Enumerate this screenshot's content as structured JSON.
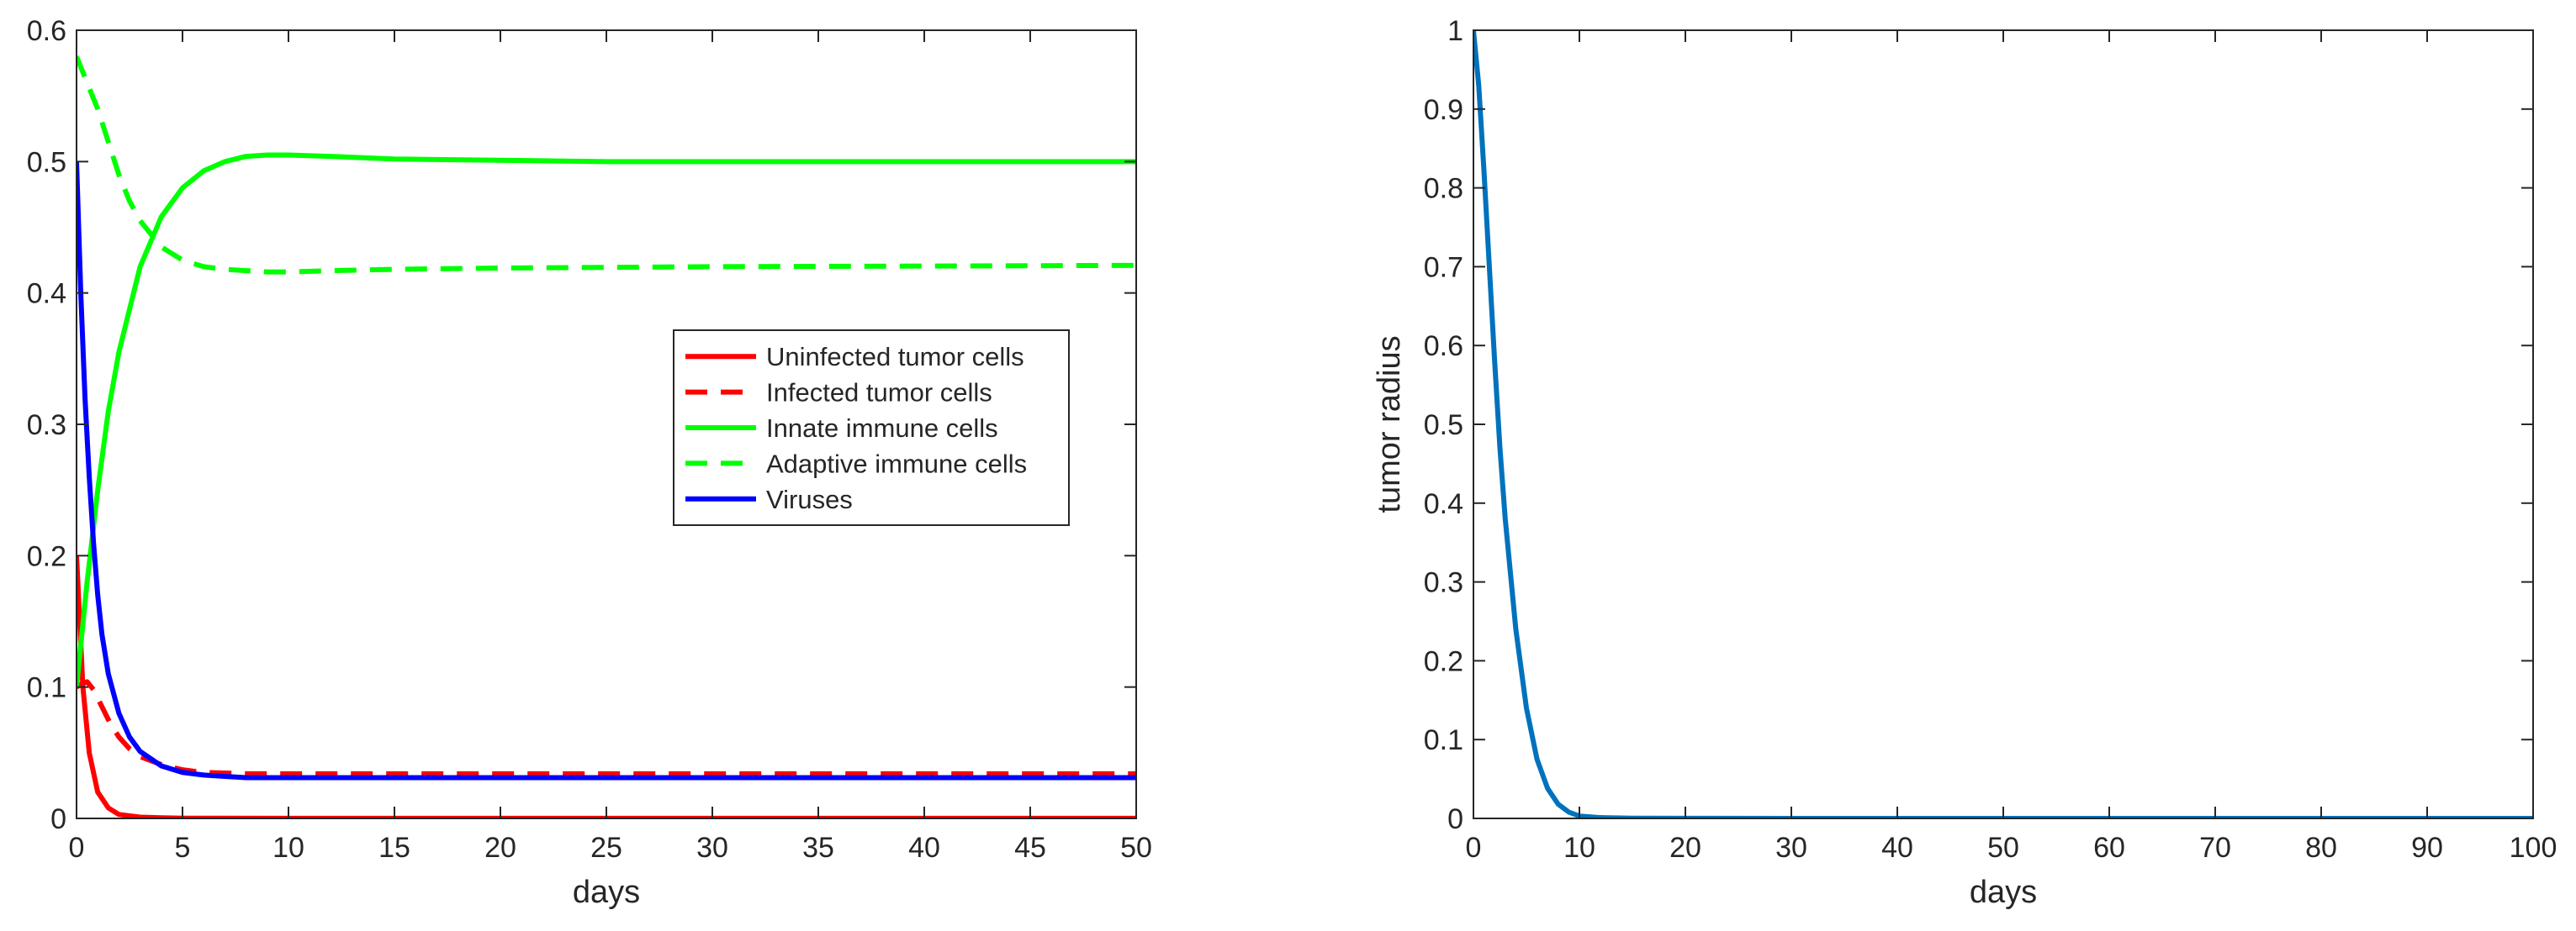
{
  "chart_data": [
    {
      "type": "line",
      "title": "",
      "xlabel": "days",
      "ylabel": "",
      "xlim": [
        0,
        50
      ],
      "ylim": [
        0,
        0.6
      ],
      "xticks": [
        0,
        5,
        10,
        15,
        20,
        25,
        30,
        35,
        40,
        45,
        50
      ],
      "yticks": [
        0,
        0.1,
        0.2,
        0.3,
        0.4,
        0.5,
        0.6
      ],
      "xtick_labels": [
        "0",
        "5",
        "10",
        "15",
        "20",
        "25",
        "30",
        "35",
        "40",
        "45",
        "50"
      ],
      "ytick_labels": [
        "0",
        "0.1",
        "0.2",
        "0.3",
        "0.4",
        "0.5",
        "0.6"
      ],
      "grid": false,
      "legend_position": "center-right",
      "series": [
        {
          "name": "Uninfected tumor cells",
          "color": "#ff0000",
          "dash": false,
          "x": [
            0,
            0.3,
            0.6,
            1,
            1.5,
            2,
            3,
            4,
            5,
            10,
            20,
            50
          ],
          "y": [
            0.2,
            0.1,
            0.05,
            0.02,
            0.008,
            0.003,
            0.001,
            0.0005,
            0.0002,
            0.0001,
            0.0001,
            0.0001
          ]
        },
        {
          "name": "Infected tumor cells",
          "color": "#ff0000",
          "dash": true,
          "x": [
            0,
            0.2,
            0.5,
            0.8,
            1.2,
            1.6,
            2,
            2.5,
            3,
            4,
            5,
            6,
            8,
            10,
            20,
            30,
            50
          ],
          "y": [
            0.1,
            0.102,
            0.104,
            0.098,
            0.085,
            0.072,
            0.062,
            0.053,
            0.047,
            0.041,
            0.037,
            0.035,
            0.034,
            0.034,
            0.034,
            0.034,
            0.034
          ]
        },
        {
          "name": "Innate immune cells",
          "color": "#00ff00",
          "dash": false,
          "x": [
            0,
            0.5,
            1,
            1.5,
            2,
            3,
            4,
            5,
            6,
            7,
            8,
            9,
            10,
            12,
            15,
            20,
            25,
            30,
            50
          ],
          "y": [
            0.1,
            0.18,
            0.25,
            0.31,
            0.355,
            0.42,
            0.458,
            0.48,
            0.493,
            0.5,
            0.504,
            0.505,
            0.505,
            0.504,
            0.502,
            0.501,
            0.5,
            0.5,
            0.5
          ]
        },
        {
          "name": "Adaptive immune cells",
          "color": "#00ff00",
          "dash": true,
          "x": [
            0,
            0.5,
            1,
            1.5,
            2,
            2.5,
            3,
            4,
            5,
            6,
            7,
            8,
            9,
            10,
            12,
            15,
            20,
            30,
            50
          ],
          "y": [
            0.58,
            0.56,
            0.54,
            0.515,
            0.49,
            0.47,
            0.455,
            0.435,
            0.425,
            0.42,
            0.418,
            0.417,
            0.416,
            0.416,
            0.417,
            0.418,
            0.419,
            0.42,
            0.421
          ]
        },
        {
          "name": "Viruses",
          "color": "#0000ff",
          "dash": false,
          "x": [
            0,
            0.2,
            0.4,
            0.6,
            0.8,
            1,
            1.2,
            1.5,
            2,
            2.5,
            3,
            4,
            5,
            6,
            7,
            8,
            10,
            20,
            50
          ],
          "y": [
            0.5,
            0.4,
            0.32,
            0.26,
            0.21,
            0.17,
            0.14,
            0.11,
            0.08,
            0.062,
            0.051,
            0.04,
            0.035,
            0.033,
            0.032,
            0.031,
            0.031,
            0.031,
            0.031
          ]
        }
      ]
    },
    {
      "type": "line",
      "title": "",
      "xlabel": "days",
      "ylabel": "tumor radius",
      "xlim": [
        0,
        100
      ],
      "ylim": [
        0,
        1
      ],
      "xticks": [
        0,
        10,
        20,
        30,
        40,
        50,
        60,
        70,
        80,
        90,
        100
      ],
      "yticks": [
        0,
        0.1,
        0.2,
        0.3,
        0.4,
        0.5,
        0.6,
        0.7,
        0.8,
        0.9,
        1
      ],
      "xtick_labels": [
        "0",
        "10",
        "20",
        "30",
        "40",
        "50",
        "60",
        "70",
        "80",
        "90",
        "100"
      ],
      "ytick_labels": [
        "0",
        "0.1",
        "0.2",
        "0.3",
        "0.4",
        "0.5",
        "0.6",
        "0.7",
        "0.8",
        "0.9",
        "1"
      ],
      "grid": false,
      "series": [
        {
          "name": "tumor radius",
          "color": "#0072bd",
          "dash": false,
          "x": [
            0,
            0.5,
            1,
            1.5,
            2,
            2.5,
            3,
            4,
            5,
            6,
            7,
            8,
            9,
            10,
            12,
            15,
            20,
            30,
            50,
            100
          ],
          "y": [
            1,
            0.93,
            0.82,
            0.7,
            0.58,
            0.47,
            0.38,
            0.24,
            0.14,
            0.075,
            0.038,
            0.018,
            0.008,
            0.003,
            0.001,
            0.0003,
            0.0001,
            0,
            0,
            0
          ]
        }
      ]
    }
  ]
}
